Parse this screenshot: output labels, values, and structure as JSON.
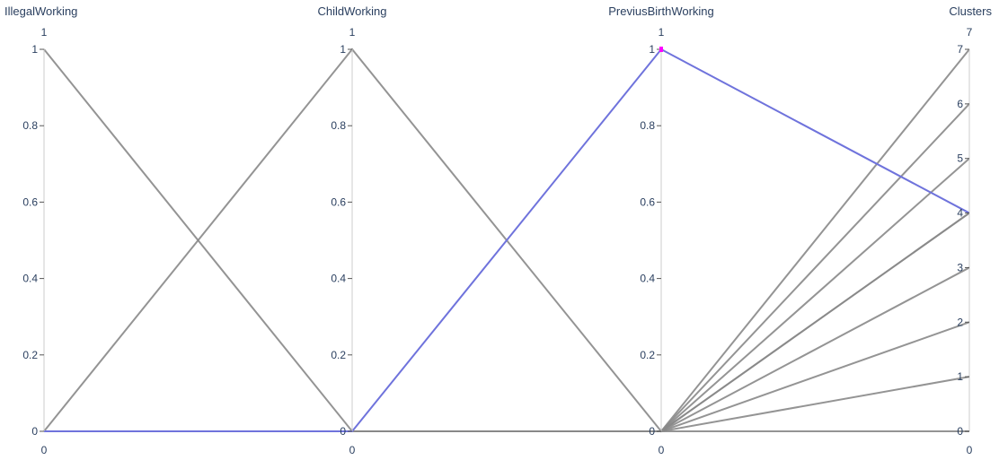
{
  "chart_data": {
    "type": "parallel_coordinates",
    "dimensions": [
      {
        "label": "IllegalWorking",
        "range": [
          0,
          1
        ],
        "ticks": [
          "0",
          "0.2",
          "0.4",
          "0.6",
          "0.8",
          "1"
        ],
        "tick_values": [
          0,
          0.2,
          0.4,
          0.6,
          0.8,
          1
        ],
        "range_min_label": "0",
        "range_max_label": "1"
      },
      {
        "label": "ChildWorking",
        "range": [
          0,
          1
        ],
        "ticks": [
          "0",
          "0.2",
          "0.4",
          "0.6",
          "0.8",
          "1"
        ],
        "tick_values": [
          0,
          0.2,
          0.4,
          0.6,
          0.8,
          1
        ],
        "range_min_label": "0",
        "range_max_label": "1"
      },
      {
        "label": "PreviusBirthWorking",
        "range": [
          0,
          1
        ],
        "ticks": [
          "0",
          "0.2",
          "0.4",
          "0.6",
          "0.8",
          "1"
        ],
        "tick_values": [
          0,
          0.2,
          0.4,
          0.6,
          0.8,
          1
        ],
        "range_min_label": "0",
        "range_max_label": "1"
      },
      {
        "label": "Clusters",
        "range": [
          0,
          7
        ],
        "ticks": [
          "0",
          "1",
          "2",
          "3",
          "4",
          "5",
          "6",
          "7"
        ],
        "tick_values": [
          0,
          1,
          2,
          3,
          4,
          5,
          6,
          7
        ],
        "range_min_label": "0",
        "range_max_label": "7"
      }
    ],
    "lines": [
      {
        "values": [
          0,
          0,
          0,
          0
        ],
        "color": "#888888"
      },
      {
        "values": [
          0,
          0,
          0,
          1
        ],
        "color": "#888888"
      },
      {
        "values": [
          0,
          0,
          0,
          2
        ],
        "color": "#888888"
      },
      {
        "values": [
          0,
          0,
          0,
          3
        ],
        "color": "#888888"
      },
      {
        "values": [
          0,
          0,
          0,
          5
        ],
        "color": "#888888"
      },
      {
        "values": [
          0,
          0,
          0,
          6
        ],
        "color": "#888888"
      },
      {
        "values": [
          0,
          0,
          0,
          7
        ],
        "color": "#888888"
      },
      {
        "values": [
          1,
          0,
          0,
          4
        ],
        "color": "#888888"
      },
      {
        "values": [
          0,
          1,
          0,
          4
        ],
        "color": "#888888"
      },
      {
        "values": [
          0,
          0,
          1,
          4
        ],
        "color": "#6f73dc",
        "highlight": true
      }
    ],
    "constraint": {
      "dimension": 2,
      "range": [
        1,
        1
      ],
      "color": "#ff00ff"
    },
    "colors": {
      "line_default": "#888888",
      "line_highlight": "#6f73dc",
      "axis": "#cccccc",
      "text": "#2a3f5f",
      "constraint": "#ff00ff"
    }
  }
}
